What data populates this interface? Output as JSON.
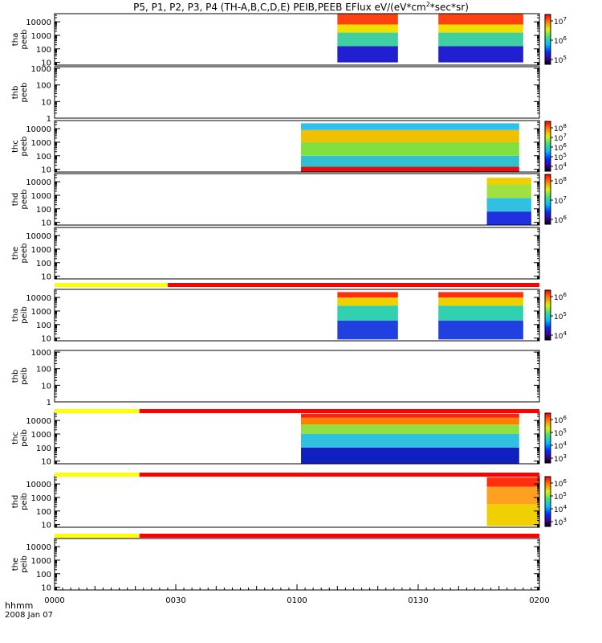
{
  "chart_data": {
    "type": "heatmap",
    "title": "P5, P1, P2, P3, P4 (TH-A,B,C,D,E) PEIB,PEEB EFlux eV/(eV*cm",
    "title_sup": "2",
    "title_tail": "*sec*sr)",
    "time_axis": {
      "label_top": "hhmm",
      "label_bottom": "2008 Jan 07",
      "ticks": [
        "0000",
        "0030",
        "0100",
        "0130",
        "0200"
      ],
      "range_minutes": [
        0,
        120
      ]
    },
    "panels": [
      {
        "probe": "tha",
        "instrument": "peeb",
        "y_ticks": [
          "10000",
          "1000",
          "100",
          "10"
        ],
        "ylog_range": [
          0.8,
          4.6
        ],
        "bands": [
          [
            1.0,
            2.2,
            "#2020d0"
          ],
          [
            2.2,
            3.2,
            "#40d0a0"
          ],
          [
            3.2,
            3.8,
            "#f0e000"
          ],
          [
            3.8,
            4.6,
            "#ff4010"
          ]
        ],
        "intervals": [
          [
            70,
            85
          ],
          [
            95,
            116
          ]
        ],
        "colorbar": {
          "labels": [
            {
              "base": "10",
              "exp": "7"
            },
            {
              "base": "10",
              "exp": "6"
            },
            {
              "base": "10",
              "exp": "5"
            }
          ]
        }
      },
      {
        "probe": "thb",
        "instrument": "peeb",
        "y_ticks": [
          "1000",
          "100",
          "10",
          "1"
        ],
        "ylog_range": [
          0,
          3.1
        ],
        "bands": [],
        "intervals": []
      },
      {
        "probe": "thc",
        "instrument": "peeb",
        "y_ticks": [
          "10000",
          "1000",
          "100",
          "10"
        ],
        "ylog_range": [
          0.8,
          4.6
        ],
        "bands": [
          [
            0.8,
            1.2,
            "#e01010"
          ],
          [
            1.2,
            2.0,
            "#30c0d0"
          ],
          [
            2.0,
            3.0,
            "#80e040"
          ],
          [
            3.0,
            3.9,
            "#f0c000"
          ],
          [
            3.9,
            4.4,
            "#30c0f0"
          ]
        ],
        "intervals": [
          [
            61,
            115
          ]
        ],
        "colorbar": {
          "labels": [
            {
              "base": "10",
              "exp": "8"
            },
            {
              "base": "10",
              "exp": "7"
            },
            {
              "base": "10",
              "exp": "6"
            },
            {
              "base": "10",
              "exp": "5"
            },
            {
              "base": "10",
              "exp": "4"
            }
          ]
        }
      },
      {
        "probe": "thd",
        "instrument": "peeb",
        "y_ticks": [
          "10000",
          "1000",
          "100",
          "10"
        ],
        "ylog_range": [
          0.8,
          4.6
        ],
        "bands": [
          [
            0.8,
            1.8,
            "#2030e0"
          ],
          [
            1.8,
            2.8,
            "#30c0e0"
          ],
          [
            2.8,
            3.8,
            "#a0e040"
          ],
          [
            3.8,
            4.3,
            "#f0d000"
          ]
        ],
        "intervals": [
          [
            107,
            118
          ]
        ],
        "colorbar": {
          "labels": [
            {
              "base": "10",
              "exp": "8"
            },
            {
              "base": "10",
              "exp": "7"
            },
            {
              "base": "10",
              "exp": "6"
            }
          ]
        }
      },
      {
        "probe": "the",
        "instrument": "peeb",
        "y_ticks": [
          "10000",
          "1000",
          "100",
          "10"
        ],
        "ylog_range": [
          0.8,
          4.6
        ],
        "bands": [],
        "intervals": []
      },
      {
        "probe": "tha",
        "instrument": "peib",
        "y_ticks": [
          "10000",
          "1000",
          "100",
          "10"
        ],
        "ylog_range": [
          0.8,
          4.6
        ],
        "bands": [
          [
            0.9,
            2.3,
            "#2040e0"
          ],
          [
            2.3,
            3.4,
            "#30d0b0"
          ],
          [
            3.4,
            4.0,
            "#f0d000"
          ],
          [
            4.0,
            4.4,
            "#ff3010"
          ]
        ],
        "intervals": [
          [
            70,
            85
          ],
          [
            95,
            116
          ]
        ],
        "colorbar": {
          "labels": [
            {
              "base": "10",
              "exp": "6"
            },
            {
              "base": "10",
              "exp": "5"
            },
            {
              "base": "10",
              "exp": "4"
            }
          ]
        }
      },
      {
        "probe": "thb",
        "instrument": "peib",
        "y_ticks": [
          "1000",
          "100",
          "10",
          "1"
        ],
        "ylog_range": [
          0,
          3.1
        ],
        "bands": [],
        "intervals": []
      },
      {
        "probe": "thc",
        "instrument": "peib",
        "y_ticks": [
          "10000",
          "1000",
          "100",
          "10"
        ],
        "ylog_range": [
          0.8,
          4.6
        ],
        "bands": [
          [
            0.8,
            2.0,
            "#1020c0"
          ],
          [
            2.0,
            3.0,
            "#30c0e0"
          ],
          [
            3.0,
            3.7,
            "#90e040"
          ],
          [
            3.7,
            4.2,
            "#ff8000"
          ],
          [
            4.2,
            4.5,
            "#ff2010"
          ]
        ],
        "intervals": [
          [
            61,
            115
          ]
        ],
        "colorbar": {
          "labels": [
            {
              "base": "10",
              "exp": "6"
            },
            {
              "base": "10",
              "exp": "5"
            },
            {
              "base": "10",
              "exp": "4"
            },
            {
              "base": "10",
              "exp": "3"
            }
          ]
        }
      },
      {
        "probe": "thd",
        "instrument": "peib",
        "y_ticks": [
          "10000",
          "1000",
          "100",
          "10"
        ],
        "ylog_range": [
          0.8,
          4.6
        ],
        "bands": [
          [
            0.9,
            2.5,
            "#f0d000"
          ],
          [
            2.5,
            3.8,
            "#ffa020"
          ],
          [
            3.8,
            4.5,
            "#ff3010"
          ]
        ],
        "intervals": [
          [
            107,
            120
          ]
        ],
        "colorbar": {
          "labels": [
            {
              "base": "10",
              "exp": "6"
            },
            {
              "base": "10",
              "exp": "5"
            },
            {
              "base": "10",
              "exp": "4"
            },
            {
              "base": "10",
              "exp": "3"
            }
          ]
        }
      },
      {
        "probe": "the",
        "instrument": "peib",
        "y_ticks": [
          "10000",
          "1000",
          "100",
          "10"
        ],
        "ylog_range": [
          0.8,
          4.6
        ],
        "bands": [],
        "intervals": []
      }
    ],
    "status_bars": [
      {
        "after_panel": 4,
        "yellow_until_minutes": 28
      },
      {
        "after_panel": 6,
        "yellow_until_minutes": 21
      },
      {
        "after_panel": 7,
        "yellow_until_minutes": 21
      },
      {
        "after_panel": 8,
        "yellow_until_minutes": 21
      }
    ],
    "colors": {
      "status_yellow": "#ffff00",
      "status_red": "#ff0000"
    }
  }
}
